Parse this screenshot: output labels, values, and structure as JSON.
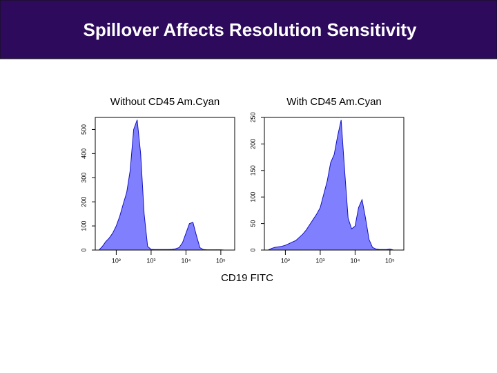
{
  "title": "Spillover Affects Resolution Sensitivity",
  "x_axis_label": "CD19 FITC",
  "chart_data": [
    {
      "type": "area",
      "title": "Without CD45 Am.Cyan",
      "log_x": true,
      "color": "#8080ff",
      "line_color": "#1010c0",
      "x": [
        32,
        40,
        50,
        63,
        79,
        100,
        126,
        158,
        200,
        251,
        316,
        398,
        501,
        631,
        794,
        1000,
        1259,
        1585,
        1995,
        2512,
        3162,
        3981,
        5012,
        6310,
        7943,
        10000,
        12589,
        15849,
        19953,
        25119,
        31623,
        39811,
        50119,
        63096,
        79433,
        100000,
        125893,
        158489,
        199526
      ],
      "values": [
        0,
        15,
        35,
        50,
        70,
        100,
        140,
        190,
        240,
        330,
        500,
        540,
        400,
        150,
        15,
        3,
        2,
        2,
        2,
        2,
        2,
        3,
        5,
        10,
        30,
        70,
        110,
        115,
        60,
        10,
        2,
        1,
        1,
        1,
        1,
        1,
        0,
        0,
        0
      ],
      "xlim": [
        25,
        250000
      ],
      "xticks": [
        {
          "value": 100,
          "label": "10²"
        },
        {
          "value": 1000,
          "label": "10³"
        },
        {
          "value": 10000,
          "label": "10⁴"
        },
        {
          "value": 100000,
          "label": "10⁵"
        }
      ],
      "ylim": [
        0,
        550
      ],
      "yticks": [
        0,
        100,
        200,
        300,
        400,
        500
      ]
    },
    {
      "type": "area",
      "title": "With CD45 Am.Cyan",
      "log_x": true,
      "color": "#8080ff",
      "line_color": "#1010c0",
      "x": [
        32,
        40,
        50,
        63,
        79,
        100,
        126,
        158,
        200,
        251,
        316,
        398,
        501,
        631,
        794,
        1000,
        1259,
        1585,
        1995,
        2512,
        3162,
        3981,
        5012,
        6310,
        7943,
        10000,
        12589,
        15849,
        19953,
        25119,
        31623,
        39811,
        50119,
        63096,
        79433,
        100000,
        125893,
        158489,
        199526
      ],
      "values": [
        0,
        3,
        5,
        6,
        7,
        9,
        12,
        15,
        18,
        24,
        30,
        38,
        48,
        58,
        68,
        80,
        105,
        130,
        165,
        180,
        215,
        245,
        150,
        60,
        40,
        45,
        80,
        95,
        60,
        20,
        5,
        2,
        1,
        1,
        1,
        2,
        0,
        0,
        0
      ],
      "xlim": [
        25,
        250000
      ],
      "xticks": [
        {
          "value": 100,
          "label": "10²"
        },
        {
          "value": 1000,
          "label": "10³"
        },
        {
          "value": 10000,
          "label": "10⁴"
        },
        {
          "value": 100000,
          "label": "10⁵"
        }
      ],
      "ylim": [
        0,
        250
      ],
      "yticks": [
        0,
        50,
        100,
        150,
        200,
        250
      ]
    }
  ]
}
